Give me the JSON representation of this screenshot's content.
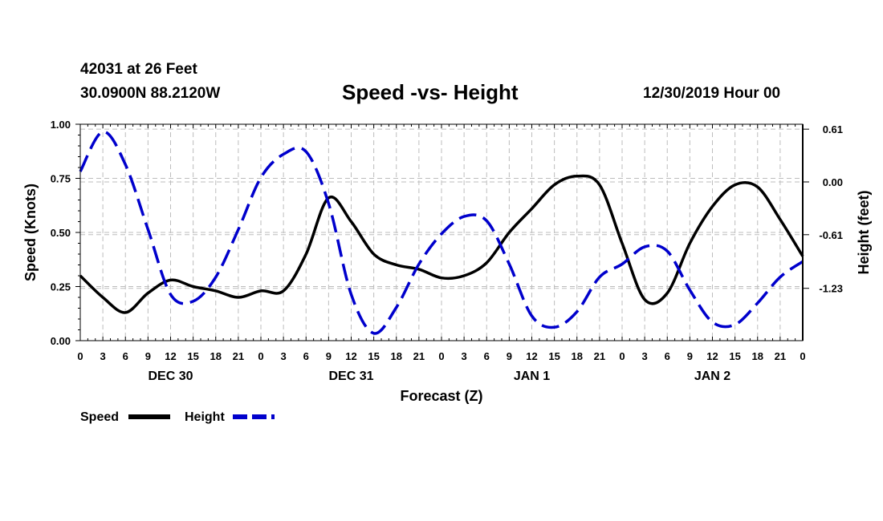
{
  "header": {
    "station": "42031 at 26 Feet",
    "coords": "30.0900N 88.2120W",
    "title": "Speed -vs- Height",
    "datetime": "12/30/2019 Hour 00"
  },
  "chart_data": {
    "type": "line",
    "title": "Speed -vs- Height",
    "xlabel": "Forecast (Z)",
    "ylabel": "Speed (Knots)",
    "y2label": "Height (feet)",
    "ylim": [
      0,
      1
    ],
    "y2lim": [
      -1.835,
      0.667
    ],
    "xlim": [
      0,
      96
    ],
    "grid": true,
    "x_tick_labels": [
      "0",
      "3",
      "6",
      "9",
      "12",
      "15",
      "18",
      "21",
      "0",
      "3",
      "6",
      "9",
      "12",
      "15",
      "18",
      "21",
      "0",
      "3",
      "6",
      "9",
      "12",
      "15",
      "18",
      "21",
      "0",
      "3",
      "6",
      "9",
      "12",
      "15",
      "18",
      "21",
      "0"
    ],
    "y_tick_labels": [
      "0.00",
      "0.25",
      "0.50",
      "0.75",
      "1.00"
    ],
    "y_tick_values": [
      0,
      0.25,
      0.5,
      0.75,
      1.0
    ],
    "y2_tick_labels": [
      "0.61",
      "0.00",
      "-0.61",
      "-1.23"
    ],
    "y2_tick_values": [
      0.61,
      0.0,
      -0.61,
      -1.23
    ],
    "day_labels": [
      {
        "label": "DEC 30",
        "hour": 12
      },
      {
        "label": "DEC 31",
        "hour": 36
      },
      {
        "label": "JAN 1",
        "hour": 60
      },
      {
        "label": "JAN 2",
        "hour": 84
      }
    ],
    "series": [
      {
        "name": "Speed",
        "axis": "left",
        "color": "#000000",
        "dash": "solid",
        "x": [
          0,
          3,
          6,
          9,
          12,
          15,
          18,
          21,
          24,
          27,
          30,
          33,
          36,
          39,
          42,
          45,
          48,
          51,
          54,
          57,
          60,
          63,
          66,
          69,
          72,
          75,
          78,
          81,
          84,
          87,
          90,
          93,
          96
        ],
        "values": [
          0.3,
          0.2,
          0.13,
          0.22,
          0.28,
          0.25,
          0.23,
          0.2,
          0.23,
          0.23,
          0.4,
          0.66,
          0.55,
          0.4,
          0.35,
          0.33,
          0.29,
          0.3,
          0.36,
          0.5,
          0.61,
          0.72,
          0.76,
          0.72,
          0.45,
          0.19,
          0.22,
          0.45,
          0.62,
          0.72,
          0.71,
          0.56,
          0.39
        ]
      },
      {
        "name": "Height",
        "axis": "right",
        "color": "#0000cc",
        "dash": "dashed",
        "x": [
          0,
          3,
          6,
          9,
          12,
          15,
          18,
          21,
          24,
          27,
          30,
          33,
          36,
          39,
          42,
          45,
          48,
          51,
          54,
          57,
          60,
          63,
          66,
          69,
          72,
          75,
          78,
          81,
          84,
          87,
          90,
          93,
          96
        ],
        "values": [
          0.12,
          0.58,
          0.2,
          -0.55,
          -1.3,
          -1.38,
          -1.1,
          -0.55,
          0.05,
          0.32,
          0.35,
          -0.25,
          -1.3,
          -1.75,
          -1.45,
          -0.95,
          -0.6,
          -0.4,
          -0.45,
          -0.95,
          -1.55,
          -1.68,
          -1.5,
          -1.1,
          -0.95,
          -0.75,
          -0.8,
          -1.25,
          -1.62,
          -1.65,
          -1.4,
          -1.1,
          -0.92
        ]
      }
    ],
    "legend": [
      {
        "label": "Speed",
        "color": "#000000",
        "dash": "solid"
      },
      {
        "label": "Height",
        "color": "#0000cc",
        "dash": "dashed"
      }
    ],
    "legend_position": "bottom-left"
  }
}
